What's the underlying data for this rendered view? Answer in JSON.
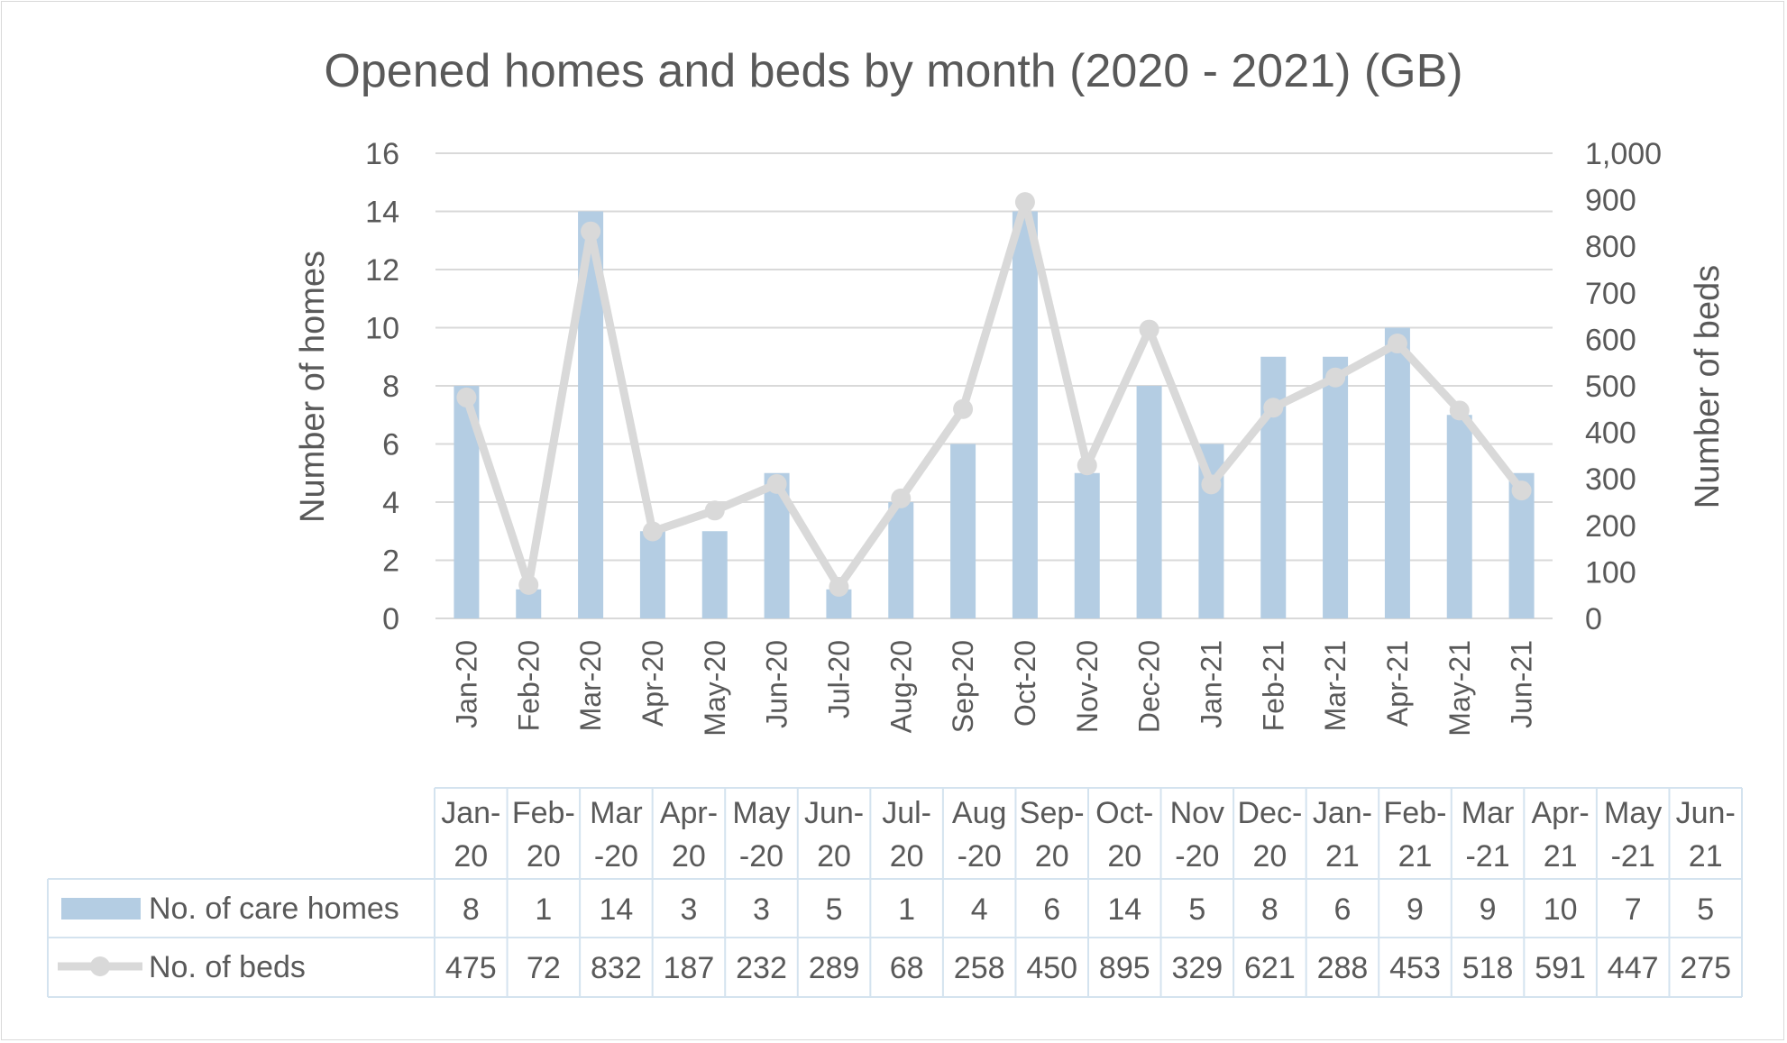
{
  "chart_data": {
    "type": "bar",
    "title": "Opened homes and beds by month (2020 - 2021) (GB)",
    "categories": [
      "Jan-20",
      "Feb-20",
      "Mar-20",
      "Apr-20",
      "May-20",
      "Jun-20",
      "Jul-20",
      "Aug-20",
      "Sep-20",
      "Oct-20",
      "Nov-20",
      "Dec-20",
      "Jan-21",
      "Feb-21",
      "Mar-21",
      "Apr-21",
      "May-21",
      "Jun-21"
    ],
    "table_headers": [
      [
        "Jan-",
        "20"
      ],
      [
        "Feb-",
        "20"
      ],
      [
        "Mar",
        "-20"
      ],
      [
        "Apr-",
        "20"
      ],
      [
        "May",
        "-20"
      ],
      [
        "Jun-",
        "20"
      ],
      [
        "Jul-",
        "20"
      ],
      [
        "Aug",
        "-20"
      ],
      [
        "Sep-",
        "20"
      ],
      [
        "Oct-",
        "20"
      ],
      [
        "Nov",
        "-20"
      ],
      [
        "Dec-",
        "20"
      ],
      [
        "Jan-",
        "21"
      ],
      [
        "Feb-",
        "21"
      ],
      [
        "Mar",
        "-21"
      ],
      [
        "Apr-",
        "21"
      ],
      [
        "May",
        "-21"
      ],
      [
        "Jun-",
        "21"
      ]
    ],
    "series": [
      {
        "name": "No. of care homes",
        "type": "bar",
        "axis": "left",
        "color": "#b4cde3",
        "values": [
          8,
          1,
          14,
          3,
          3,
          5,
          1,
          4,
          6,
          14,
          5,
          8,
          6,
          9,
          9,
          10,
          7,
          5
        ]
      },
      {
        "name": "No. of beds",
        "type": "line",
        "axis": "right",
        "color": "#d9d9d9",
        "values": [
          475,
          72,
          832,
          187,
          232,
          289,
          68,
          258,
          450,
          895,
          329,
          621,
          288,
          453,
          518,
          591,
          447,
          275
        ]
      }
    ],
    "ylabel": "Number of  homes",
    "y2label": "Number of beds",
    "ylim": [
      0,
      16
    ],
    "y2lim": [
      0,
      1000
    ],
    "yticks": [
      "0",
      "2",
      "4",
      "6",
      "8",
      "10",
      "12",
      "14",
      "16"
    ],
    "y2ticks": [
      "0",
      "100",
      "200",
      "300",
      "400",
      "500",
      "600",
      "700",
      "800",
      "900",
      "1,000"
    ],
    "grid": true,
    "legend": "data-table"
  }
}
